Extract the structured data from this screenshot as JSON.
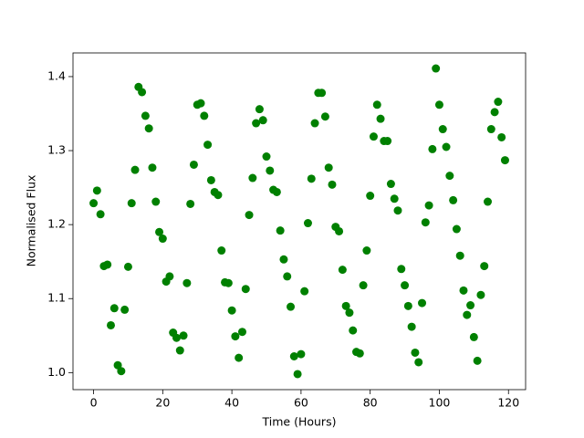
{
  "chart_data": {
    "type": "scatter",
    "xlabel": "Time (Hours)",
    "ylabel": "Normalised Flux",
    "color": "#008000",
    "x": [
      0,
      1,
      2,
      3,
      4,
      5,
      6,
      7,
      8,
      9,
      10,
      11,
      12,
      13,
      14,
      15,
      16,
      17,
      18,
      19,
      20,
      21,
      22,
      23,
      24,
      25,
      26,
      27,
      28,
      29,
      30,
      31,
      32,
      33,
      34,
      35,
      36,
      37,
      38,
      39,
      40,
      41,
      42,
      43,
      44,
      45,
      46,
      47,
      48,
      49,
      50,
      51,
      52,
      53,
      54,
      55,
      56,
      57,
      58,
      59,
      60,
      61,
      62,
      63,
      64,
      65,
      66,
      67,
      68,
      69,
      70,
      71,
      72,
      73,
      74,
      75,
      76,
      77,
      78,
      79,
      80,
      81,
      82,
      83,
      84,
      85,
      86,
      87,
      88,
      89,
      90,
      91,
      92,
      93,
      94,
      95,
      96,
      97,
      98,
      99,
      100,
      101,
      102,
      103,
      104,
      105,
      106,
      107,
      108,
      109,
      110,
      111,
      112,
      113,
      114,
      115,
      116,
      117,
      118,
      119
    ],
    "values": [
      1.229,
      1.246,
      1.214,
      1.144,
      1.146,
      1.064,
      1.087,
      1.01,
      1.002,
      1.085,
      1.143,
      1.229,
      1.274,
      1.386,
      1.379,
      1.347,
      1.33,
      1.277,
      1.231,
      1.19,
      1.181,
      1.123,
      1.13,
      1.054,
      1.047,
      1.03,
      1.05,
      1.121,
      1.228,
      1.281,
      1.362,
      1.364,
      1.347,
      1.308,
      1.26,
      1.244,
      1.24,
      1.165,
      1.122,
      1.121,
      1.084,
      1.049,
      1.02,
      1.055,
      1.113,
      1.213,
      1.263,
      1.337,
      1.356,
      1.341,
      1.292,
      1.273,
      1.247,
      1.244,
      1.192,
      1.153,
      1.13,
      1.089,
      1.022,
      0.998,
      1.025,
      1.11,
      1.202,
      1.262,
      1.337,
      1.378,
      1.378,
      1.346,
      1.277,
      1.254,
      1.197,
      1.191,
      1.139,
      1.09,
      1.081,
      1.057,
      1.028,
      1.026,
      1.118,
      1.165,
      1.239,
      1.319,
      1.362,
      1.343,
      1.313,
      1.313,
      1.255,
      1.235,
      1.219,
      1.14,
      1.118,
      1.09,
      1.062,
      1.027,
      1.014,
      1.094,
      1.203,
      1.226,
      1.302,
      1.411,
      1.362,
      1.329,
      1.305,
      1.266,
      1.233,
      1.194,
      1.158,
      1.111,
      1.078,
      1.091,
      1.048,
      1.016,
      1.105,
      1.144,
      1.231,
      1.329,
      1.352,
      1.366,
      1.318,
      1.287
    ],
    "xlim": [
      -5.95,
      124.95
    ],
    "ylim": [
      0.977,
      1.432
    ],
    "xticks": [
      0,
      20,
      40,
      60,
      80,
      100,
      120
    ],
    "yticks": [
      {
        "value": 1,
        "label": "1.0"
      },
      1.1,
      1.2,
      1.3,
      1.4
    ]
  }
}
